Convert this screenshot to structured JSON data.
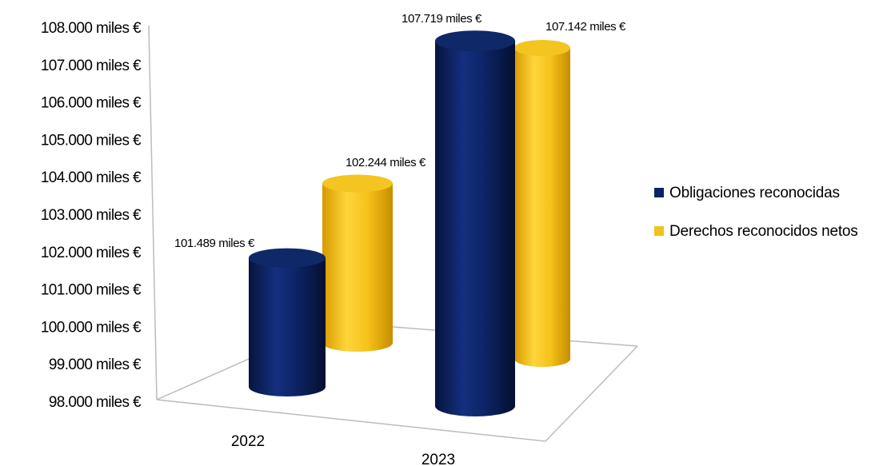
{
  "chart_data": {
    "type": "bar",
    "style": "3d-cylinder",
    "categories": [
      "2022",
      "2023"
    ],
    "series": [
      {
        "name": "Obligaciones reconocidas",
        "values": [
          101489,
          107719
        ],
        "labels": [
          "101.489 miles €",
          "107.719 miles €"
        ]
      },
      {
        "name": "Derechos reconocidos netos",
        "values": [
          102244,
          107142
        ],
        "labels": [
          "102.244 miles €",
          "107.142 miles €"
        ]
      }
    ],
    "ylim": [
      98000,
      108000
    ],
    "yticks": [
      98000,
      99000,
      100000,
      101000,
      102000,
      103000,
      104000,
      105000,
      106000,
      107000,
      108000
    ],
    "ytick_labels": [
      "98.000 miles €",
      "99.000 miles €",
      "100.000 miles €",
      "101.000 miles €",
      "102.000 miles €",
      "103.000 miles €",
      "104.000 miles €",
      "105.000 miles €",
      "106.000 miles €",
      "107.000 miles €",
      "108.000 miles €"
    ],
    "legend_position": "right",
    "grid": false,
    "colors": {
      "Obligaciones reconocidas": "#0b2363",
      "Derechos reconocidos netos": "#f2c21b"
    }
  }
}
